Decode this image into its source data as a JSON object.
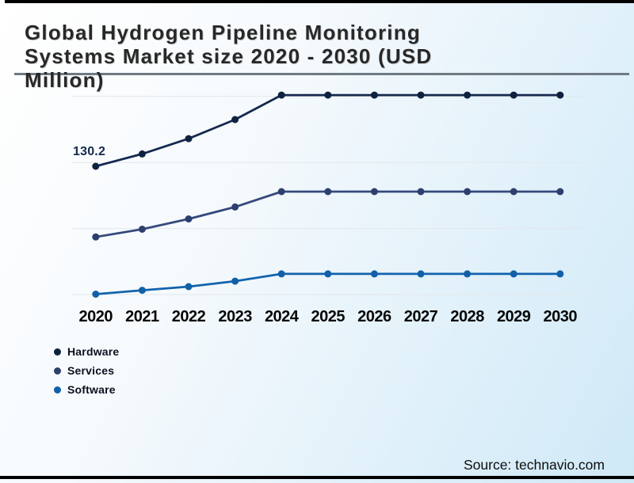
{
  "page": {
    "title_lines": [
      "Global Hydrogen Pipeline Monitoring",
      "Systems Market size 2020 - 2030 (USD",
      "Million)"
    ],
    "source": "Source: technavio.com"
  },
  "chart_data": {
    "type": "line",
    "title": "Global Hydrogen Pipeline Monitoring Systems Market size 2020 - 2030 (USD Million)",
    "unit": "USD Million",
    "x_categories": [
      "2020",
      "2021",
      "2022",
      "2023",
      "2024",
      "2025",
      "2026",
      "2027",
      "2028",
      "2029",
      "2030"
    ],
    "grid": "horizontal",
    "legend_position": "bottom-left",
    "marker": "circle",
    "data_labels": [
      {
        "series": "Hardware",
        "x": "2020",
        "text": "130.2",
        "value": 130.2
      }
    ],
    "series": [
      {
        "name": "Hardware",
        "color": "#15294e",
        "marker_color": "#0e2240",
        "values": [
          130.2,
          142.5,
          157.7,
          176.7,
          201.0,
          201.0,
          201.0,
          201.0,
          201.0,
          201.0,
          201.0
        ]
      },
      {
        "name": "Services",
        "color": "#35497c",
        "marker_color": "#2c3f6e",
        "values": [
          59.8,
          67.5,
          77.8,
          89.7,
          105.0,
          105.0,
          105.0,
          105.0,
          105.0,
          105.0,
          105.0
        ]
      },
      {
        "name": "Software",
        "color": "#1263ad",
        "marker_color": "#1160a8",
        "values": [
          2.9,
          6.8,
          10.4,
          15.8,
          23.1,
          23.1,
          23.1,
          23.1,
          23.1,
          23.1,
          23.1
        ]
      }
    ]
  }
}
